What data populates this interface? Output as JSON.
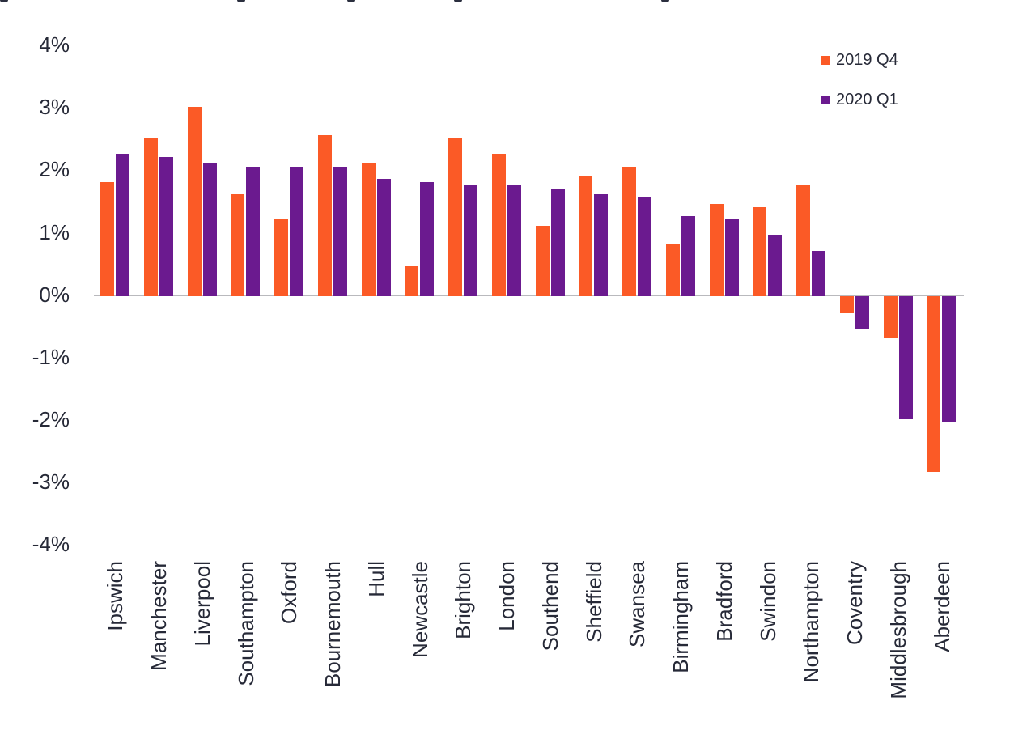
{
  "chart_data": {
    "type": "bar",
    "title": "",
    "xlabel": "",
    "ylabel": "",
    "categories": [
      "Ipswich",
      "Manchester",
      "Liverpool",
      "Southampton",
      "Oxford",
      "Bournemouth",
      "Hull",
      "Newcastle",
      "Brighton",
      "London",
      "Southend",
      "Sheffield",
      "Swansea",
      "Birmingham",
      "Bradford",
      "Swindon",
      "Northampton",
      "Coventry",
      "Middlesbrough",
      "Aberdeen"
    ],
    "series": [
      {
        "name": "2019 Q4",
        "color": "#FB5A26",
        "values": [
          1.8,
          2.5,
          3.0,
          1.6,
          1.2,
          2.55,
          2.1,
          0.45,
          2.5,
          2.25,
          1.1,
          1.9,
          2.05,
          0.8,
          1.45,
          1.4,
          1.75,
          -0.3,
          -0.7,
          -2.85
        ]
      },
      {
        "name": "2020 Q1",
        "color": "#6B1A8F",
        "values": [
          2.25,
          2.2,
          2.1,
          2.05,
          2.05,
          2.05,
          1.85,
          1.8,
          1.75,
          1.75,
          1.7,
          1.6,
          1.55,
          1.25,
          1.2,
          0.95,
          0.7,
          -0.55,
          -2.0,
          -2.05
        ]
      }
    ],
    "y_ticks": [
      "4%",
      "3%",
      "2%",
      "1%",
      "0%",
      "-1%",
      "-2%",
      "-3%",
      "-4%"
    ],
    "ylim": [
      -4,
      4
    ],
    "grid": false,
    "legend_position": "top-right",
    "text_color": "#262937",
    "axis_line_color": "#b9b9bd"
  }
}
